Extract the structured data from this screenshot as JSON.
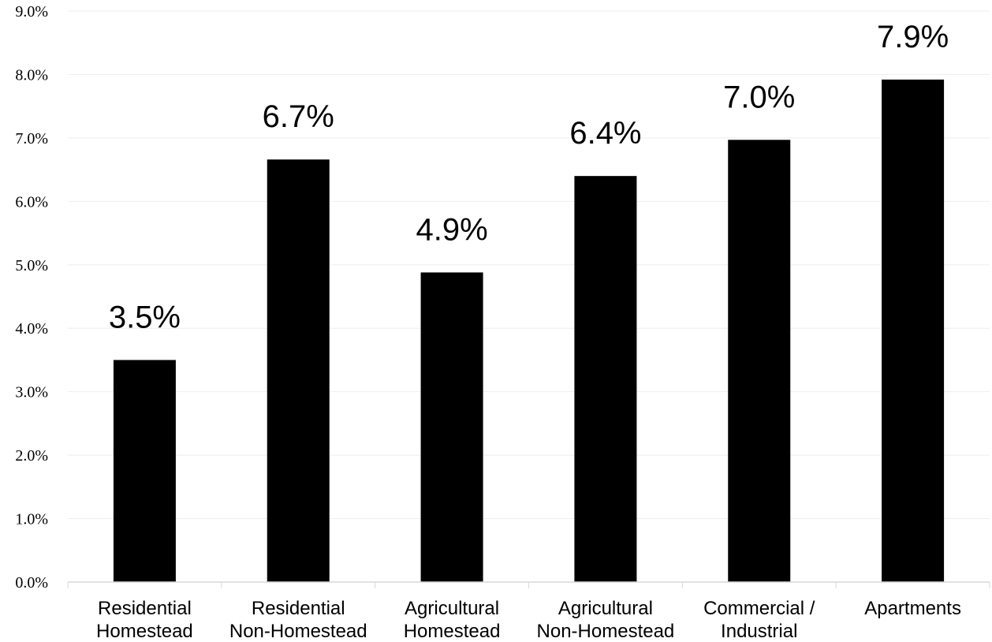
{
  "chart_data": {
    "type": "bar",
    "categories": [
      [
        "Residential",
        "Homestead"
      ],
      [
        "Residential",
        "Non-Homestead"
      ],
      [
        "Agricultural",
        "Homestead"
      ],
      [
        "Agricultural",
        "Non-Homestead"
      ],
      [
        "Commercial /",
        "Industrial"
      ],
      [
        "Apartments"
      ]
    ],
    "values": [
      3.5,
      6.66,
      4.88,
      6.4,
      6.97,
      7.92
    ],
    "data_labels": [
      "3.5%",
      "6.7%",
      "4.9%",
      "6.4%",
      "7.0%",
      "7.9%"
    ],
    "y_tick_labels": [
      "0.0%",
      "1.0%",
      "2.0%",
      "3.0%",
      "4.0%",
      "5.0%",
      "6.0%",
      "7.0%",
      "8.0%",
      "9.0%"
    ],
    "ylim": [
      0,
      9
    ],
    "grid": true,
    "legend": "none",
    "title": "",
    "xlabel": "",
    "ylabel": "",
    "colors": {
      "bar": "#000000",
      "grid": "#eeeeee",
      "axis": "#d9d9d9"
    }
  }
}
